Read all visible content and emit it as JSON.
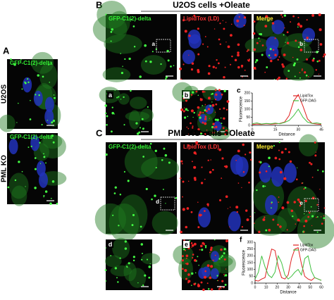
{
  "panel_a": {
    "label": "A",
    "rows": [
      {
        "name": "U2OS",
        "channel": "GFP-C1(2)-delta"
      },
      {
        "name": "PML KO",
        "channel": "GFP-C1(2)-delta"
      }
    ]
  },
  "panel_b": {
    "label": "B",
    "title": "U2OS cells +Oleate",
    "channels": [
      "GFP-C1(2)-delta",
      "LipidTox (LD)",
      "Merge"
    ],
    "inset_labels": [
      "a",
      "b"
    ],
    "zoom_labels": [
      "a",
      "b"
    ],
    "plot": {
      "label": "c",
      "type": "line",
      "xlabel": "Distance",
      "ylabel": "Fluorescence",
      "xlim": [
        0,
        45
      ],
      "xticks": [
        0,
        15,
        30,
        45
      ],
      "ylim": [
        0,
        200
      ],
      "yticks": [
        0,
        50,
        100,
        150,
        200
      ],
      "x": [
        0,
        3,
        6,
        9,
        12,
        15,
        18,
        21,
        24,
        27,
        30,
        33,
        36,
        39,
        42,
        45
      ],
      "series": [
        {
          "name": "LipidTox",
          "color": "#e02020",
          "values": [
            5,
            8,
            6,
            10,
            7,
            9,
            12,
            20,
            60,
            150,
            190,
            120,
            40,
            12,
            8,
            6
          ]
        },
        {
          "name": "GFP-DAG",
          "color": "#40c040",
          "values": [
            10,
            15,
            8,
            12,
            10,
            14,
            10,
            18,
            30,
            60,
            100,
            50,
            20,
            12,
            15,
            10
          ]
        }
      ]
    }
  },
  "panel_c": {
    "label": "C",
    "title": "PML KO cells +Oleate",
    "channels": [
      "GFP-C1(2)-delta",
      "LipidTox (LD)",
      "Merge"
    ],
    "inset_labels": [
      "d",
      "e"
    ],
    "zoom_labels": [
      "d",
      "e"
    ],
    "plot": {
      "label": "f",
      "type": "line",
      "xlabel": "Distance",
      "ylabel": "Fluorescence",
      "xlim": [
        0,
        60
      ],
      "xticks": [
        0,
        10,
        20,
        30,
        40,
        50,
        60
      ],
      "ylim": [
        0,
        300
      ],
      "yticks": [
        0,
        50,
        100,
        150,
        200,
        250,
        300
      ],
      "x": [
        0,
        3,
        6,
        9,
        12,
        15,
        18,
        21,
        24,
        27,
        30,
        33,
        36,
        39,
        42,
        45,
        48,
        51,
        54,
        57,
        60
      ],
      "series": [
        {
          "name": "LipidTox",
          "color": "#e02020",
          "values": [
            20,
            15,
            30,
            40,
            150,
            250,
            240,
            120,
            40,
            30,
            60,
            180,
            250,
            260,
            140,
            50,
            30,
            20,
            40,
            30,
            20
          ]
        },
        {
          "name": "GFP-DAG",
          "color": "#40c040",
          "values": [
            30,
            80,
            200,
            120,
            60,
            40,
            80,
            200,
            150,
            60,
            30,
            50,
            80,
            100,
            60,
            180,
            200,
            90,
            40,
            30,
            20
          ]
        }
      ]
    }
  }
}
